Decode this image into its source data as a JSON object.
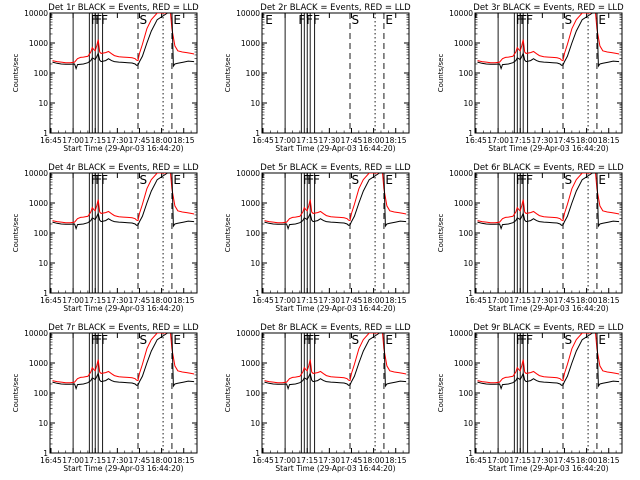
{
  "common": {
    "xlabel": "Start Time (29-Apr-03 16:44:20)",
    "ylabel": "Counts/sec",
    "xticks": [
      "16:45",
      "17:00",
      "17:15",
      "17:30",
      "17:45",
      "18:00",
      "18:15"
    ],
    "xtick_minutes": [
      45,
      60,
      75,
      90,
      105,
      120,
      135
    ],
    "yticks": [
      "1",
      "10",
      "100",
      "1000",
      "10000"
    ],
    "xlim_minutes": [
      44.33,
      144
    ],
    "ylim": [
      1,
      10000
    ],
    "yscale": "log"
  },
  "colors": {
    "events": "#000000",
    "lld": "#ff0000",
    "frame": "#000000"
  },
  "panels": [
    {
      "title": "Det 1r  BLACK = Events, RED = LLD",
      "markers": [
        "F",
        "F",
        "F",
        "S",
        "E"
      ],
      "has_data": true
    },
    {
      "title": "Det 2r  BLACK = Events, RED = LLD",
      "markers": [
        "E",
        "F",
        "F",
        "F",
        "S",
        "E"
      ],
      "has_data": false
    },
    {
      "title": "Det 3r  BLACK = Events, RED = LLD",
      "markers": [
        "F",
        "F",
        "F",
        "S",
        "E"
      ],
      "has_data": true
    },
    {
      "title": "Det 4r  BLACK = Events, RED = LLD",
      "markers": [
        "F",
        "F",
        "F",
        "S",
        "E"
      ],
      "has_data": true
    },
    {
      "title": "Det 5r  BLACK = Events, RED = LLD",
      "markers": [
        "F",
        "F",
        "F",
        "S",
        "E"
      ],
      "has_data": true
    },
    {
      "title": "Det 6r  BLACK = Events, RED = LLD",
      "markers": [
        "F",
        "F",
        "F",
        "S",
        "E"
      ],
      "has_data": true
    },
    {
      "title": "Det 7r  BLACK = Events, RED = LLD",
      "markers": [
        "F",
        "F",
        "F",
        "S",
        "E"
      ],
      "has_data": true
    },
    {
      "title": "Det 8r  BLACK = Events, RED = LLD",
      "markers": [
        "F",
        "F",
        "F",
        "S",
        "E"
      ],
      "has_data": true
    },
    {
      "title": "Det 9r  BLACK = Events, RED = LLD",
      "markers": [
        "F",
        "F",
        "F",
        "S",
        "E"
      ],
      "has_data": true
    }
  ],
  "chart_data": {
    "type": "line",
    "x_unit": "minutes past 16:00",
    "series": [
      {
        "name": "LLD",
        "color": "red",
        "points": [
          [
            46,
            260
          ],
          [
            49,
            240
          ],
          [
            52,
            230
          ],
          [
            55,
            220
          ],
          [
            58,
            220
          ],
          [
            61,
            230
          ],
          [
            63,
            300
          ],
          [
            65,
            330
          ],
          [
            67,
            340
          ],
          [
            70,
            360
          ],
          [
            72,
            500
          ],
          [
            73,
            700
          ],
          [
            74,
            600
          ],
          [
            75,
            550
          ],
          [
            76,
            800
          ],
          [
            77,
            1300
          ],
          [
            78,
            500
          ],
          [
            79,
            450
          ],
          [
            82,
            480
          ],
          [
            84,
            520
          ],
          [
            86,
            440
          ],
          [
            88,
            380
          ],
          [
            91,
            350
          ],
          [
            94,
            340
          ],
          [
            97,
            330
          ],
          [
            100,
            320
          ],
          [
            102,
            300
          ],
          [
            103,
            270
          ],
          [
            104,
            260
          ],
          [
            105,
            450
          ],
          [
            107,
            900
          ],
          [
            110,
            3000
          ],
          [
            113,
            6000
          ],
          [
            117,
            10000
          ],
          [
            126,
            10000
          ],
          [
            127,
            3000
          ],
          [
            129,
            800
          ],
          [
            131,
            550
          ],
          [
            134,
            500
          ],
          [
            137,
            480
          ],
          [
            140,
            450
          ],
          [
            142,
            430
          ]
        ]
      },
      {
        "name": "Events",
        "color": "black",
        "points": [
          [
            46,
            230
          ],
          [
            49,
            210
          ],
          [
            52,
            200
          ],
          [
            55,
            195
          ],
          [
            58,
            195
          ],
          [
            61,
            200
          ],
          [
            62,
            140
          ],
          [
            63,
            190
          ],
          [
            67,
            200
          ],
          [
            70,
            220
          ],
          [
            72,
            260
          ],
          [
            73,
            320
          ],
          [
            75,
            280
          ],
          [
            76,
            350
          ],
          [
            77,
            450
          ],
          [
            78,
            270
          ],
          [
            79,
            240
          ],
          [
            82,
            260
          ],
          [
            84,
            300
          ],
          [
            86,
            260
          ],
          [
            88,
            240
          ],
          [
            91,
            230
          ],
          [
            94,
            225
          ],
          [
            97,
            220
          ],
          [
            100,
            215
          ],
          [
            102,
            200
          ],
          [
            103,
            180
          ],
          [
            104,
            185
          ],
          [
            105,
            240
          ],
          [
            107,
            360
          ],
          [
            110,
            1000
          ],
          [
            113,
            2500
          ],
          [
            117,
            6000
          ],
          [
            124,
            10000
          ],
          [
            127,
            10000
          ],
          [
            128,
            170
          ],
          [
            129,
            200
          ],
          [
            131,
            210
          ],
          [
            135,
            230
          ],
          [
            138,
            250
          ],
          [
            142,
            240
          ]
        ]
      }
    ],
    "vertical_lines": {
      "solid_minutes": [
        60,
        71,
        73,
        75,
        77,
        80
      ],
      "dashed_minutes": [
        104,
        127
      ],
      "dotted_minutes": [
        121
      ]
    }
  }
}
